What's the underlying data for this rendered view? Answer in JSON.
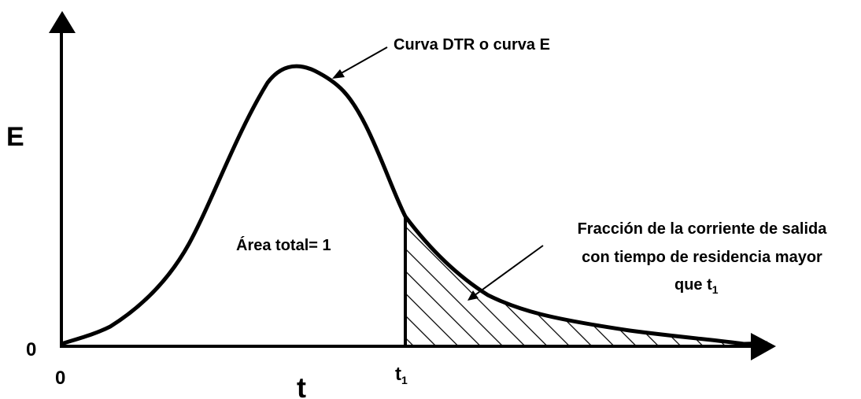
{
  "labels": {
    "y_axis": "E",
    "x_axis": "t",
    "y_origin": "0",
    "x_origin": "0",
    "t1": {
      "main": "t",
      "sub": "1"
    }
  },
  "annotations": {
    "curve": "Curva DTR o curva E",
    "area": "Área total= 1",
    "fraction": {
      "lines": [
        "Fracción de la corriente de salida",
        "con tiempo de residencia mayor"
      ],
      "last": {
        "main": "que t",
        "sub": "1"
      }
    }
  }
}
